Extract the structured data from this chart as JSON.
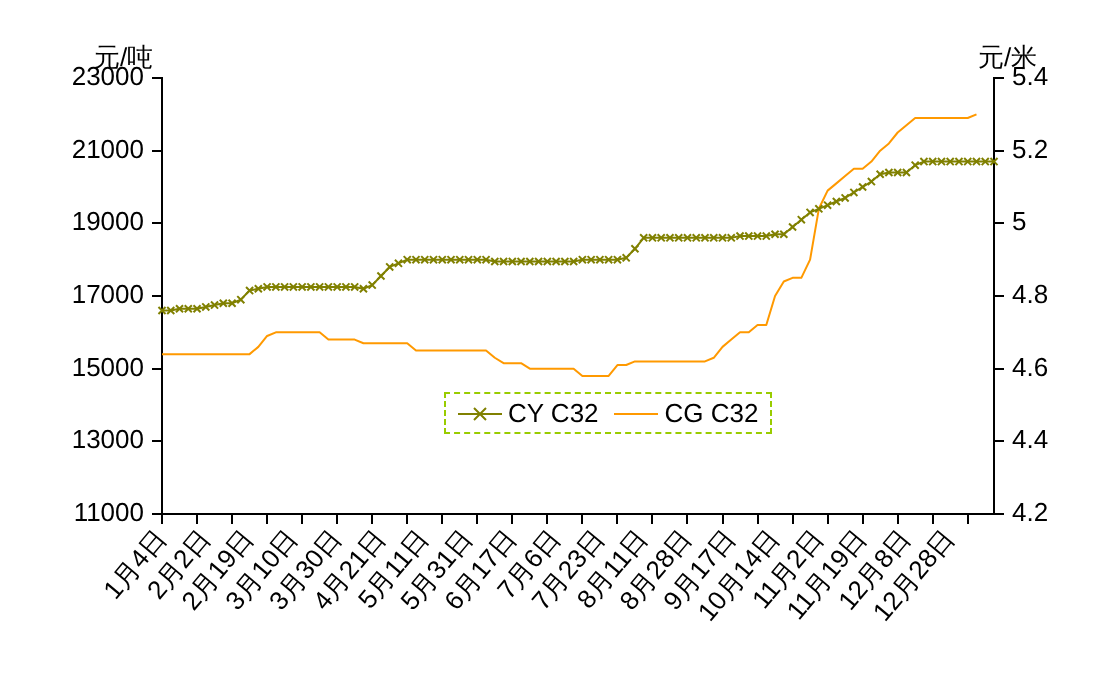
{
  "chart_data": {
    "type": "line",
    "ylabel": "元/吨",
    "y2label": "元/米",
    "categories": [
      "1月4日",
      null,
      null,
      null,
      null,
      "2月2日",
      null,
      null,
      null,
      null,
      "2月19日",
      null,
      null,
      null,
      null,
      "3月10日",
      null,
      null,
      null,
      null,
      "3月30日",
      null,
      null,
      null,
      null,
      "4月21日",
      null,
      null,
      null,
      null,
      "5月11日",
      null,
      null,
      null,
      null,
      "5月31日",
      null,
      null,
      null,
      null,
      "6月17日",
      null,
      null,
      null,
      null,
      "7月6日",
      null,
      null,
      null,
      null,
      "7月23日",
      null,
      null,
      null,
      null,
      "8月11日",
      null,
      null,
      null,
      null,
      "8月28日",
      null,
      null,
      null,
      null,
      "9月17日",
      null,
      null,
      null,
      null,
      "10月14日",
      null,
      null,
      null,
      null,
      "11月2日",
      null,
      null,
      null,
      null,
      "11月19日",
      null,
      null,
      null,
      null,
      "12月8日",
      null,
      null,
      null,
      null,
      "12月28日",
      null,
      null,
      null,
      null,
      null
    ],
    "series": [
      {
        "name": "CY C32",
        "color": "#808000",
        "marker": "cross",
        "values": [
          16600,
          16600,
          16650,
          16650,
          16650,
          16700,
          16750,
          16800,
          16800,
          16900,
          17150,
          17200,
          17250,
          17250,
          17250,
          17250,
          17250,
          17250,
          17250,
          17250,
          17250,
          17250,
          17250,
          17200,
          17300,
          17550,
          17800,
          17900,
          18000,
          18000,
          18000,
          18000,
          18000,
          18000,
          18000,
          18000,
          18000,
          18000,
          17950,
          17950,
          17950,
          17950,
          17950,
          17950,
          17950,
          17950,
          17950,
          17950,
          18000,
          18000,
          18000,
          18000,
          18000,
          18050,
          18300,
          18600,
          18600,
          18600,
          18600,
          18600,
          18600,
          18600,
          18600,
          18600,
          18600,
          18600,
          18650,
          18650,
          18650,
          18650,
          18700,
          18700,
          18900,
          19100,
          19300,
          19400,
          19500,
          19600,
          19700,
          19850,
          20000,
          20150,
          20350,
          20400,
          20400,
          20400,
          20600,
          20700,
          20700,
          20700,
          20700,
          20700,
          20700,
          20700,
          20700,
          20700
        ]
      },
      {
        "name": "CG C32",
        "color": "#ff9900",
        "axis": "y2",
        "marker": "none",
        "values": [
          4.64,
          4.64,
          4.64,
          4.64,
          4.64,
          4.64,
          4.64,
          4.64,
          4.64,
          4.64,
          4.64,
          4.66,
          4.69,
          4.7,
          4.7,
          4.7,
          4.7,
          4.7,
          4.7,
          4.68,
          4.68,
          4.68,
          4.68,
          4.67,
          4.67,
          4.67,
          4.67,
          4.67,
          4.67,
          4.65,
          4.65,
          4.65,
          4.65,
          4.65,
          4.65,
          4.65,
          4.65,
          4.65,
          4.63,
          4.615,
          4.615,
          4.615,
          4.6,
          4.6,
          4.6,
          4.6,
          4.6,
          4.6,
          4.58,
          4.58,
          4.58,
          4.58,
          4.61,
          4.61,
          4.62,
          4.62,
          4.62,
          4.62,
          4.62,
          4.62,
          4.62,
          4.62,
          4.62,
          4.63,
          4.66,
          4.68,
          4.7,
          4.7,
          4.72,
          4.72,
          4.8,
          4.84,
          4.85,
          4.85,
          4.9,
          5.04,
          5.09,
          5.11,
          5.13,
          5.15,
          5.15,
          5.17,
          5.2,
          5.22,
          5.25,
          5.27,
          5.29,
          5.29,
          5.29,
          5.29,
          5.29,
          5.29,
          5.29,
          5.3,
          null,
          null
        ]
      }
    ],
    "ylim": [
      11000,
      23000
    ],
    "yticks": [
      11000,
      13000,
      15000,
      17000,
      19000,
      21000,
      23000
    ],
    "y2lim": [
      4.2,
      5.4
    ],
    "y2ticks": [
      4.2,
      4.4,
      4.6,
      4.8,
      5,
      5.2,
      5.4
    ],
    "grid": false,
    "legend": "center"
  }
}
